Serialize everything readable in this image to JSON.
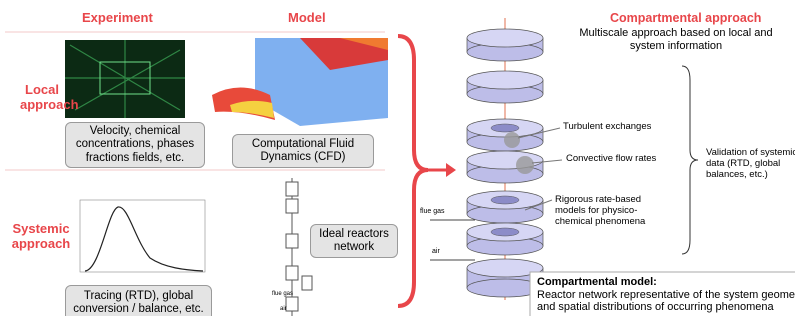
{
  "columns": {
    "experiment": "Experiment",
    "model": "Model"
  },
  "local": {
    "label": [
      "Local",
      "approach"
    ],
    "experiment_caption": [
      "Velocity, chemical",
      "concentrations, phases",
      "fractions fields, etc."
    ],
    "model_caption": [
      "Computational Fluid",
      "Dynamics (CFD)"
    ]
  },
  "systemic": {
    "label": [
      "Systemic",
      "approach"
    ],
    "experiment_caption": [
      "Tracing (RTD),  global",
      "conversion / balance, etc."
    ],
    "model_note": [
      "Ideal reactors",
      "network"
    ],
    "network_labels": [
      "flue gas",
      "air"
    ]
  },
  "compartmental": {
    "title": "Compartmental approach",
    "subtitle": [
      "Multiscale approach based on local and",
      "system information"
    ],
    "callouts": [
      [
        "Turbulent exchanges"
      ],
      [
        "Convective flow rates"
      ],
      [
        "Rigorous rate-based",
        "models for physico-",
        "chemical phenomena"
      ]
    ],
    "inlets": [
      "flue gas",
      "air"
    ],
    "validation": [
      "Validation of systemic",
      "data (RTD, global",
      "balances, etc.)"
    ],
    "box_title": "Compartmental model:",
    "box_text": [
      "Reactor network representative of the system geometry",
      "and spatial distributions of occurring phenomena"
    ]
  }
}
